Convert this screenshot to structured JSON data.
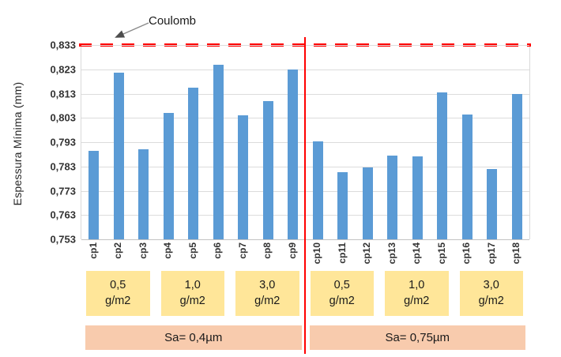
{
  "annotation": {
    "label": "Coulomb"
  },
  "y_axis": {
    "title": "Espessura Mínima (mm)",
    "tick_labels": [
      "0,833",
      "0,823",
      "0,813",
      "0,803",
      "0,793",
      "0,783",
      "0,773",
      "0,763",
      "0,753"
    ]
  },
  "chart_data": {
    "type": "bar",
    "title": "",
    "xlabel": "",
    "ylabel": "Espessura Mínima (mm)",
    "categories": [
      "cp1",
      "cp2",
      "cp3",
      "cp4",
      "cp5",
      "cp6",
      "cp7",
      "cp8",
      "cp9",
      "cp10",
      "cp11",
      "cp12",
      "cp13",
      "cp14",
      "cp15",
      "cp16",
      "cp17",
      "cp18"
    ],
    "values": [
      0.7895,
      0.8215,
      0.79,
      0.805,
      0.8155,
      0.825,
      0.804,
      0.81,
      0.823,
      0.7935,
      0.7805,
      0.7825,
      0.7875,
      0.787,
      0.8135,
      0.8045,
      0.782,
      0.813
    ],
    "ylim": [
      0.753,
      0.833
    ],
    "ytick_step": 0.01,
    "ytick_labels": [
      "0,833",
      "0,823",
      "0,813",
      "0,803",
      "0,793",
      "0,783",
      "0,773",
      "0,763",
      "0,753"
    ],
    "grid": true,
    "legend": "none",
    "reference_line": {
      "label": "Coulomb",
      "value": 0.833,
      "style": "dashed",
      "color": "#ff0000"
    },
    "separator_line": {
      "between": [
        "cp9",
        "cp10"
      ],
      "color": "#ff0000"
    },
    "dose_groups": [
      {
        "line1": "0,5",
        "line2": "g/m2",
        "from": 0,
        "to": 2
      },
      {
        "line1": "1,0",
        "line2": "g/m2",
        "from": 3,
        "to": 5
      },
      {
        "line1": "3,0",
        "line2": "g/m2",
        "from": 6,
        "to": 8
      },
      {
        "line1": "0,5",
        "line2": "g/m2",
        "from": 9,
        "to": 11
      },
      {
        "line1": "1,0",
        "line2": "g/m2",
        "from": 12,
        "to": 14
      },
      {
        "line1": "3,0",
        "line2": "g/m2",
        "from": 15,
        "to": 17
      }
    ],
    "roughness_sections": [
      {
        "label": "Sa= 0,4µm",
        "from": 0,
        "to": 8
      },
      {
        "label": "Sa= 0,75µm",
        "from": 9,
        "to": 17
      }
    ],
    "colors": {
      "bar": "#5b9bd5",
      "reference_line": "#ff0000",
      "separator_line": "#ff0000",
      "dose_box": "#ffe699",
      "roughness_box": "#f8cbad",
      "gridline": "#dcdcdc"
    }
  }
}
